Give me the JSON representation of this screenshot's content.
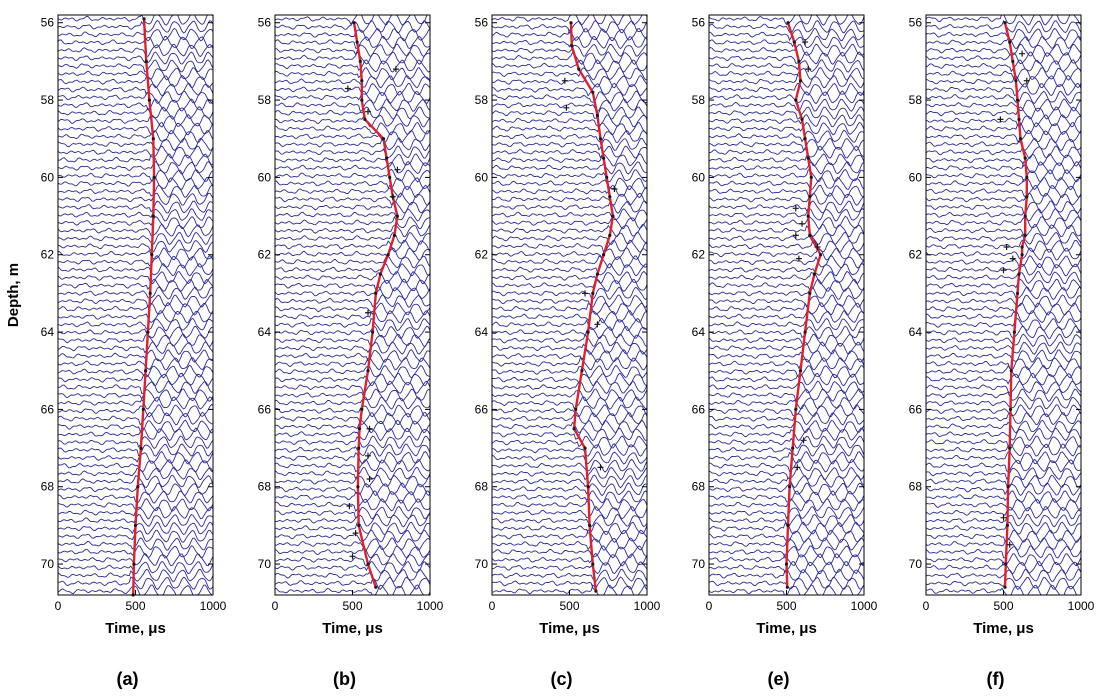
{
  "figure": {
    "ylabel": "Depth, m",
    "xlabel": "Time,  μs",
    "colors": {
      "trace": "#2a2a9a",
      "pick": "#e0202a",
      "marker": "#1a1a1a",
      "frame": "#000000"
    }
  },
  "chart_data": [
    {
      "type": "line",
      "panel": "(a)",
      "xlabel": "Time,  μs",
      "ylabel": "Depth, m",
      "xlim": [
        0,
        1000
      ],
      "ylim": [
        70.8,
        55.8
      ],
      "xticks": [
        0,
        500,
        1000
      ],
      "yticks": [
        56,
        58,
        60,
        62,
        64,
        66,
        68,
        70
      ],
      "xtick_labels": [
        "0",
        "500",
        "1000"
      ],
      "ytick_labels": [
        "56",
        "58",
        "60",
        "62",
        "64",
        "66",
        "68",
        "70"
      ],
      "pick_depth": [
        55.9,
        57.0,
        58.0,
        59.0,
        60.0,
        61.0,
        62.0,
        63.0,
        64.0,
        65.0,
        66.0,
        67.0,
        68.0,
        69.0,
        70.0,
        70.8
      ],
      "pick_time": [
        555,
        570,
        590,
        615,
        620,
        615,
        605,
        595,
        580,
        565,
        550,
        535,
        515,
        500,
        490,
        485
      ],
      "outlier_depth": [],
      "outlier_time": []
    },
    {
      "type": "line",
      "panel": "(b)",
      "xlabel": "Time,  μs",
      "ylabel": "",
      "xlim": [
        0,
        1000
      ],
      "ylim": [
        70.8,
        55.8
      ],
      "xticks": [
        0,
        500,
        1000
      ],
      "yticks": [
        56,
        58,
        60,
        62,
        64,
        66,
        68,
        70
      ],
      "xtick_labels": [
        "0",
        "500",
        "1000"
      ],
      "ytick_labels": [
        "56",
        "58",
        "60",
        "62",
        "64",
        "66",
        "68",
        "70"
      ],
      "pick_depth": [
        56.0,
        56.5,
        57.0,
        57.5,
        58.0,
        58.5,
        59.0,
        59.5,
        60.0,
        60.5,
        61.0,
        61.5,
        62.0,
        62.5,
        63.0,
        64.0,
        65.0,
        66.0,
        66.5,
        67.0,
        68.0,
        69.0,
        70.0,
        70.6
      ],
      "pick_time": [
        510,
        530,
        550,
        560,
        560,
        580,
        700,
        720,
        740,
        760,
        790,
        770,
        730,
        680,
        650,
        630,
        600,
        560,
        545,
        540,
        535,
        540,
        600,
        650
      ],
      "outlier_depth": [
        57.2,
        57.7,
        58.3,
        59.8,
        60.5,
        63.5,
        66.5,
        67.2,
        67.8,
        68.5,
        69.2,
        69.8
      ],
      "outlier_time": [
        780,
        470,
        600,
        790,
        760,
        600,
        610,
        600,
        610,
        480,
        520,
        500
      ]
    },
    {
      "type": "line",
      "panel": "(c)",
      "xlabel": "Time,  μs",
      "ylabel": "",
      "xlim": [
        0,
        1000
      ],
      "ylim": [
        70.8,
        55.8
      ],
      "xticks": [
        0,
        500,
        1000
      ],
      "yticks": [
        56,
        58,
        60,
        62,
        64,
        66,
        68,
        70
      ],
      "xtick_labels": [
        "0",
        "500",
        "1000"
      ],
      "ytick_labels": [
        "56",
        "58",
        "60",
        "62",
        "64",
        "66",
        "68",
        "70"
      ],
      "pick_depth": [
        56.0,
        56.6,
        57.2,
        57.8,
        58.4,
        59.0,
        59.5,
        60.0,
        60.5,
        61.0,
        61.5,
        62.0,
        62.5,
        63.0,
        64.0,
        65.0,
        66.0,
        66.5,
        67.0,
        68.0,
        69.0,
        70.0,
        70.7
      ],
      "pick_time": [
        510,
        515,
        560,
        650,
        680,
        700,
        720,
        740,
        760,
        780,
        760,
        720,
        680,
        650,
        620,
        580,
        540,
        530,
        600,
        620,
        630,
        650,
        670
      ],
      "outlier_depth": [
        57.5,
        58.2,
        60.3,
        63.0,
        63.8,
        67.5
      ],
      "outlier_time": [
        470,
        480,
        790,
        600,
        680,
        700
      ]
    },
    {
      "type": "line",
      "panel": "(e)",
      "xlabel": "Time,  μs",
      "ylabel": "",
      "xlim": [
        0,
        1000
      ],
      "ylim": [
        70.8,
        55.8
      ],
      "xticks": [
        0,
        500,
        1000
      ],
      "yticks": [
        56,
        58,
        60,
        62,
        64,
        66,
        68,
        70
      ],
      "xtick_labels": [
        "0",
        "500",
        "1000"
      ],
      "ytick_labels": [
        "56",
        "58",
        "60",
        "62",
        "64",
        "66",
        "68",
        "70"
      ],
      "pick_depth": [
        56.0,
        56.5,
        57.0,
        57.5,
        58.0,
        58.5,
        59.0,
        59.5,
        60.0,
        60.5,
        61.0,
        61.5,
        62.0,
        62.5,
        63.0,
        64.0,
        65.0,
        66.0,
        67.0,
        68.0,
        69.0,
        70.0,
        70.6
      ],
      "pick_time": [
        510,
        550,
        580,
        590,
        560,
        600,
        620,
        640,
        660,
        650,
        640,
        650,
        720,
        680,
        650,
        620,
        590,
        560,
        540,
        520,
        510,
        500,
        505
      ],
      "outlier_depth": [
        56.5,
        57.2,
        60.8,
        61.2,
        61.5,
        61.8,
        62.1,
        66.8,
        67.5
      ],
      "outlier_time": [
        620,
        640,
        560,
        600,
        560,
        700,
        580,
        610,
        570
      ]
    },
    {
      "type": "line",
      "panel": "(f)",
      "xlabel": "Time,  μs",
      "ylabel": "",
      "xlim": [
        0,
        1000
      ],
      "ylim": [
        70.8,
        55.8
      ],
      "xticks": [
        0,
        500,
        1000
      ],
      "yticks": [
        56,
        58,
        60,
        62,
        64,
        66,
        68,
        70
      ],
      "xtick_labels": [
        "0",
        "500",
        "1000"
      ],
      "ytick_labels": [
        "56",
        "58",
        "60",
        "62",
        "64",
        "66",
        "68",
        "70"
      ],
      "pick_depth": [
        56.0,
        56.5,
        57.0,
        57.5,
        58.0,
        58.5,
        59.0,
        59.5,
        60.0,
        60.5,
        61.0,
        61.5,
        61.8,
        62.0,
        62.5,
        63.0,
        64.0,
        65.0,
        66.0,
        67.0,
        68.0,
        69.0,
        70.0,
        70.6
      ],
      "pick_time": [
        510,
        540,
        560,
        580,
        590,
        600,
        610,
        640,
        650,
        650,
        640,
        640,
        620,
        620,
        600,
        590,
        570,
        550,
        545,
        540,
        530,
        525,
        515,
        510
      ],
      "outlier_depth": [
        56.8,
        57.5,
        58.5,
        61.8,
        62.1,
        62.4,
        68.8,
        69.5
      ],
      "outlier_time": [
        620,
        650,
        480,
        520,
        560,
        500,
        500,
        540
      ]
    }
  ]
}
